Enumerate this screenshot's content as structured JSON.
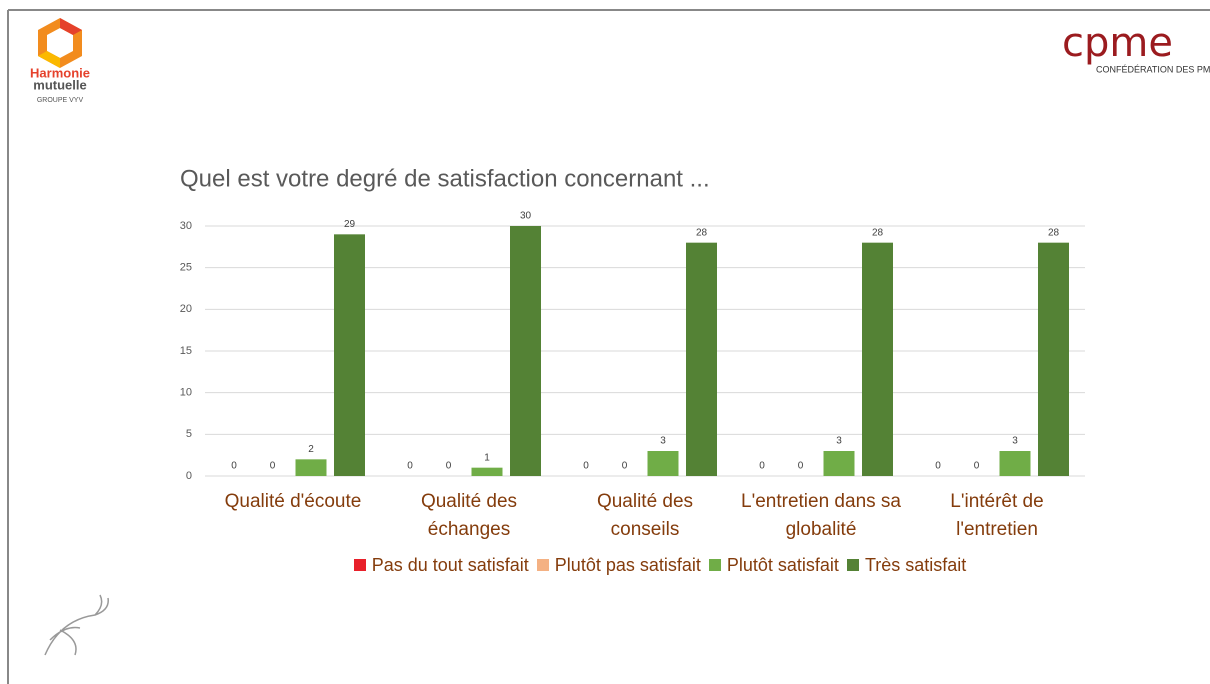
{
  "logos": {
    "harmonie_line1": "Harmonie",
    "harmonie_line2": "mutuelle",
    "harmonie_group": "GROUPE VYV",
    "cpme": "cpme",
    "cpme_sub": "CONFÉDÉRATION DES PME"
  },
  "chart_data": {
    "type": "bar",
    "title": "Quel est votre degré de satisfaction concernant ...",
    "categories": [
      "Qualité d'écoute",
      "Qualité des échanges",
      "Qualité des conseils",
      "L'entretien dans sa globalité",
      "L'intérêt de l'entretien"
    ],
    "series": [
      {
        "name": "Pas du tout satisfait",
        "color": "#e8202a",
        "values": [
          0,
          0,
          0,
          0,
          0
        ]
      },
      {
        "name": "Plutôt pas satisfait",
        "color": "#f4b183",
        "values": [
          0,
          0,
          0,
          0,
          0
        ]
      },
      {
        "name": "Plutôt satisfait",
        "color": "#70ad47",
        "values": [
          2,
          1,
          3,
          3,
          3
        ]
      },
      {
        "name": "Très satisfait",
        "color": "#548235",
        "values": [
          29,
          30,
          28,
          28,
          28
        ]
      }
    ],
    "ylim": [
      0,
      30
    ],
    "yticks": [
      0,
      5,
      10,
      15,
      20,
      25,
      30
    ],
    "grid": true,
    "legend": "bottom"
  }
}
